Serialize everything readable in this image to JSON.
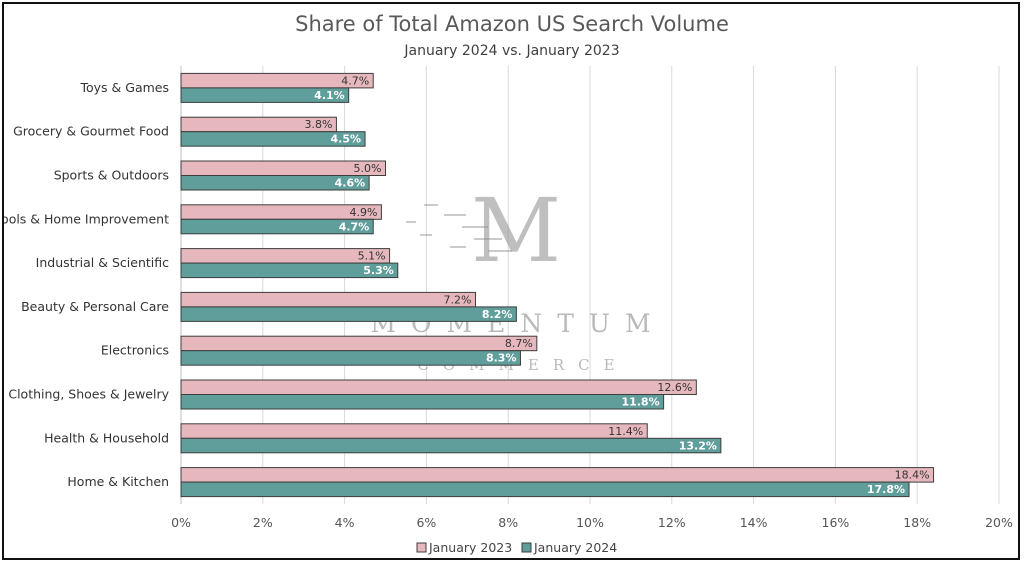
{
  "colors": {
    "jan2023_fill": "#e6b8be",
    "jan2024_fill": "#5f9e9a",
    "bar_stroke": "#3d3d3d",
    "grid": "#d9d9d9"
  },
  "watermark": {
    "letter": "M",
    "word": "MOMENTUM",
    "sub": "COMMERCE"
  },
  "chart_data": {
    "type": "bar",
    "orientation": "horizontal",
    "title": "Share of Total Amazon US Search Volume",
    "subtitle": "January 2024 vs. January 2023",
    "categories": [
      "Toys & Games",
      "Grocery & Gourmet Food",
      "Sports & Outdoors",
      "Tools & Home Improvement",
      "Industrial & Scientific",
      "Beauty & Personal Care",
      "Electronics",
      "Clothing, Shoes & Jewelry",
      "Health & Household",
      "Home & Kitchen"
    ],
    "series": [
      {
        "name": "January 2023",
        "values": [
          4.7,
          3.8,
          5.0,
          4.9,
          5.1,
          7.2,
          8.7,
          12.6,
          11.4,
          18.4
        ],
        "labels": [
          "4.7%",
          "3.8%",
          "5.0%",
          "4.9%",
          "5.1%",
          "7.2%",
          "8.7%",
          "12.6%",
          "11.4%",
          "18.4%"
        ]
      },
      {
        "name": "January 2024",
        "values": [
          4.1,
          4.5,
          4.6,
          4.7,
          5.3,
          8.2,
          8.3,
          11.8,
          13.2,
          17.8
        ],
        "labels": [
          "4.1%",
          "4.5%",
          "4.6%",
          "4.7%",
          "5.3%",
          "8.2%",
          "8.3%",
          "11.8%",
          "13.2%",
          "17.8%"
        ]
      }
    ],
    "xlim": [
      0,
      20
    ],
    "xticks": [
      0,
      2,
      4,
      6,
      8,
      10,
      12,
      14,
      16,
      18,
      20
    ],
    "xtick_labels": [
      "0%",
      "2%",
      "4%",
      "6%",
      "8%",
      "10%",
      "12%",
      "14%",
      "16%",
      "18%",
      "20%"
    ],
    "xlabel": "",
    "ylabel": "",
    "grid": "vertical",
    "legend_position": "bottom"
  }
}
